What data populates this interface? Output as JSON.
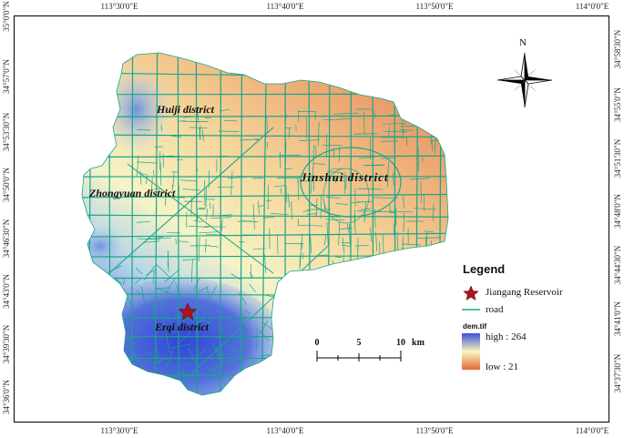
{
  "map": {
    "top_ticks": [
      "113°30'0\"E",
      "113°40'0\"E",
      "113°50'0\"E",
      "114°0'0\"E"
    ],
    "bottom_ticks": [
      "113°30'0\"E",
      "113°40'0\"E",
      "113°50'0\"E",
      "114°0'0\"E"
    ],
    "left_ticks": [
      "35°0'0\"N",
      "34°57'0\"N",
      "34°53'30\"N",
      "34°50'0\"N",
      "34°46'30\"N",
      "34°43'0\"N",
      "34°39'30\"N",
      "34°36'0\"N"
    ],
    "right_ticks": [
      "34°58'30\"N",
      "34°55'0\"N",
      "34°51'30\"N",
      "34°48'0\"N",
      "34°44'30\"N",
      "34°41'0\"N",
      "34°37'30\"N"
    ],
    "districts": {
      "huiji": "Huiji district",
      "jinshui": "Jinshui district",
      "zhongyuan": "Zhongyuan district",
      "erqi": "Erqi district"
    },
    "north_label": "N"
  },
  "legend": {
    "title": "Legend",
    "reservoir": "Jiangang Reservoir",
    "road": "road",
    "dem_title": "dem.tif",
    "high": "high : 264",
    "low": "low : 21"
  },
  "scale": {
    "labels": [
      "0",
      "5",
      "10"
    ],
    "unit": "km"
  },
  "colors": {
    "road": "#1aa58a",
    "star": "#b0141c",
    "dem_high": "#3c52d6",
    "dem_mid": "#fbf5c0",
    "dem_low": "#e06a3a"
  }
}
